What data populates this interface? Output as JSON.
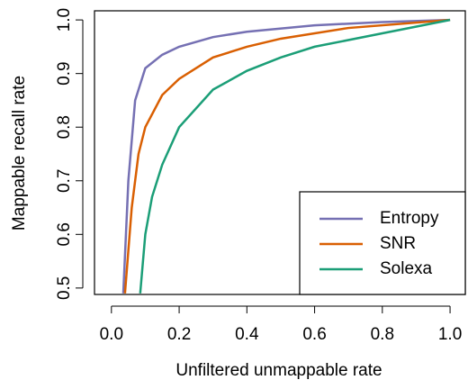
{
  "chart_data": {
    "type": "line",
    "xlabel": "Unfiltered unmappable rate",
    "ylabel": "Mappable recall rate",
    "xlim": [
      -0.05,
      1.045
    ],
    "ylim": [
      0.488,
      1.017
    ],
    "xticks": [
      {
        "value": 0,
        "label": "0.0"
      },
      0.2,
      0.4,
      0.6,
      0.8,
      {
        "value": 1,
        "label": "1.0"
      }
    ],
    "yticks": [
      0.5,
      0.6,
      0.7,
      0.8,
      0.9,
      {
        "value": 1,
        "label": "1.0"
      }
    ],
    "legend": "bottomright",
    "series": [
      {
        "name": "Entropy",
        "color": "#7570b3",
        "x": [
          0.035,
          0.05,
          0.07,
          0.1,
          0.15,
          0.2,
          0.3,
          0.4,
          0.6,
          0.8,
          1.0
        ],
        "values": [
          0.49,
          0.7,
          0.85,
          0.91,
          0.935,
          0.95,
          0.968,
          0.978,
          0.99,
          0.996,
          1.0
        ]
      },
      {
        "name": "SNR",
        "color": "#d95f02",
        "x": [
          0.04,
          0.06,
          0.08,
          0.1,
          0.15,
          0.2,
          0.3,
          0.4,
          0.5,
          0.7,
          1.0
        ],
        "values": [
          0.49,
          0.65,
          0.75,
          0.8,
          0.86,
          0.89,
          0.93,
          0.95,
          0.965,
          0.985,
          1.0
        ]
      },
      {
        "name": "Solexa",
        "color": "#1b9e77",
        "x": [
          0.085,
          0.1,
          0.12,
          0.15,
          0.2,
          0.3,
          0.4,
          0.5,
          0.6,
          0.8,
          1.0
        ],
        "values": [
          0.49,
          0.6,
          0.67,
          0.73,
          0.8,
          0.87,
          0.905,
          0.93,
          0.95,
          0.975,
          1.0
        ]
      }
    ]
  }
}
